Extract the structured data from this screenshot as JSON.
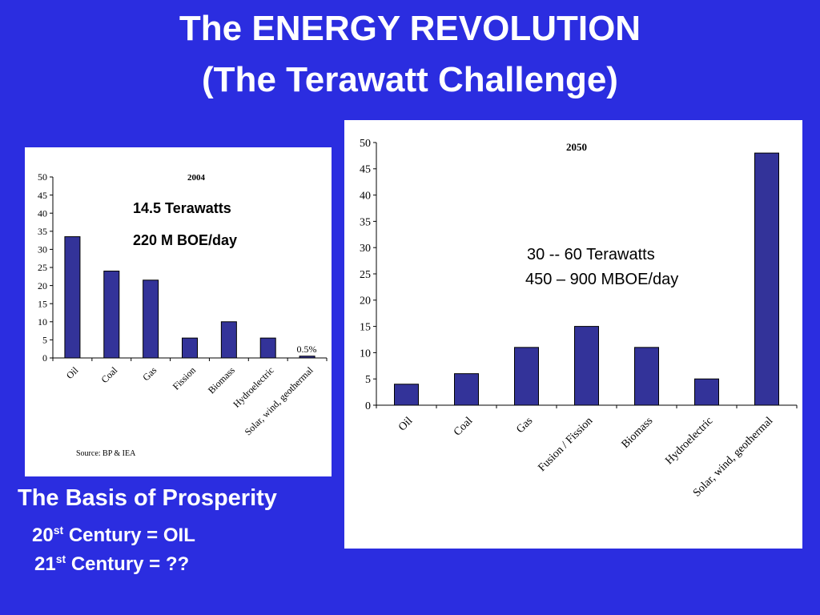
{
  "title": {
    "line1": "The  ENERGY REVOLUTION",
    "line2": "(The Terawatt  Challenge)"
  },
  "chart_data": [
    {
      "type": "bar",
      "title": "2004",
      "categories": [
        "Oil",
        "Coal",
        "Gas",
        "Fission",
        "Biomass",
        "Hydroelectric",
        "Solar, wind, geothermal"
      ],
      "values": [
        33.5,
        24,
        21.5,
        5.5,
        10,
        5.5,
        0.5
      ],
      "ylim": [
        0,
        50
      ],
      "yticks": [
        0,
        5,
        10,
        15,
        20,
        25,
        30,
        35,
        40,
        45,
        50
      ],
      "bar_color": "#333399",
      "annotations": {
        "terawatts": "14.5 Terawatts",
        "boe": "220 M BOE/day",
        "last_bar_label": "0.5%",
        "source": "Source: BP & IEA"
      },
      "grid": false,
      "legend": "none"
    },
    {
      "type": "bar",
      "title": "2050",
      "categories": [
        "Oil",
        "Coal",
        "Gas",
        "Fusion / Fission",
        "Biomass",
        "Hydroelectric",
        "Solar, wind, geothermal"
      ],
      "values": [
        4,
        6,
        11,
        15,
        11,
        5,
        48
      ],
      "ylim": [
        0,
        50
      ],
      "yticks": [
        0,
        5,
        10,
        15,
        20,
        25,
        30,
        35,
        40,
        45,
        50
      ],
      "bar_color": "#333399",
      "annotations": {
        "terawatts": "30 -- 60 Terawatts",
        "boe": "450 – 900  MBOE/day"
      },
      "grid": false,
      "legend": "none"
    }
  ],
  "footer": {
    "heading": "The Basis of Prosperity",
    "line1_num": "20",
    "line1_sup": "st",
    "line1_rest": " Century  =  OIL",
    "line2_num": "21",
    "line2_sup": "st",
    "line2_rest": " Century  =  ??"
  }
}
